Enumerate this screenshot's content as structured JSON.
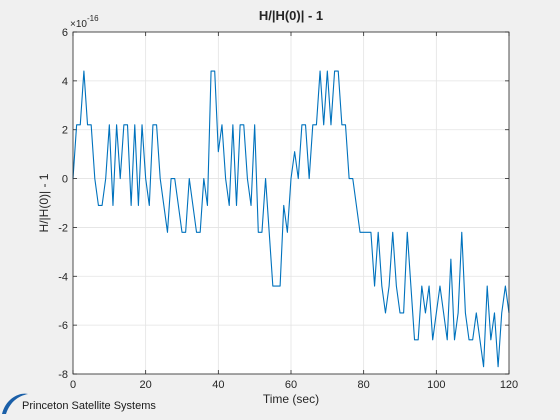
{
  "chart_data": {
    "type": "line",
    "title": "H/|H(0)| - 1",
    "xlabel": "Time (sec)",
    "ylabel": "H/|H(0)| - 1",
    "xlim": [
      0,
      120
    ],
    "ylim": [
      -8,
      6
    ],
    "y_exponent_label": "×10",
    "y_exponent_power": "-16",
    "x_ticks": [
      0,
      20,
      40,
      60,
      80,
      100,
      120
    ],
    "x_tick_labels": [
      "0",
      "20",
      "40",
      "60",
      "80",
      "100",
      "120"
    ],
    "y_ticks": [
      -8,
      -6,
      -4,
      -2,
      0,
      2,
      4,
      6
    ],
    "y_tick_labels": [
      "-8",
      "-6",
      "-4",
      "-2",
      "0",
      "2",
      "4",
      "6"
    ],
    "grid": true,
    "series": [
      {
        "color": "#0072bd",
        "x": [
          0,
          1,
          2,
          3,
          4,
          5,
          6,
          7,
          8,
          9,
          10,
          11,
          12,
          13,
          14,
          15,
          16,
          17,
          18,
          19,
          20,
          21,
          22,
          23,
          24,
          25,
          26,
          27,
          28,
          29,
          30,
          31,
          32,
          33,
          34,
          35,
          36,
          37,
          38,
          39,
          40,
          41,
          42,
          43,
          44,
          45,
          46,
          47,
          48,
          49,
          50,
          51,
          52,
          53,
          54,
          55,
          56,
          57,
          58,
          59,
          60,
          61,
          62,
          63,
          64,
          65,
          66,
          67,
          68,
          69,
          70,
          71,
          72,
          73,
          74,
          75,
          76,
          77,
          78,
          79,
          80,
          81,
          82,
          83,
          84,
          85,
          86,
          87,
          88,
          89,
          90,
          91,
          92,
          93,
          94,
          95,
          96,
          97,
          98,
          99,
          100,
          101,
          102,
          103,
          104,
          105,
          106,
          107,
          108,
          109,
          110,
          111,
          112,
          113,
          114,
          115,
          116,
          117,
          118,
          119,
          120
        ],
        "y": [
          0,
          2.2,
          2.2,
          4.4,
          2.2,
          2.2,
          0,
          -1.1,
          -1.1,
          0,
          2.2,
          -1.1,
          2.2,
          0,
          2.2,
          2.2,
          -1.1,
          2.2,
          -1.1,
          2.2,
          0,
          -1.1,
          2.2,
          2.2,
          0,
          -1.1,
          -2.2,
          0,
          0,
          -1.1,
          -2.2,
          -2.2,
          0,
          -1.1,
          -2.2,
          -2.2,
          0,
          -1.1,
          4.4,
          4.4,
          1.1,
          2.2,
          0,
          -1.1,
          2.2,
          -1.1,
          2.2,
          2.2,
          0,
          -1.1,
          2.2,
          -2.2,
          -2.2,
          0,
          -2.2,
          -4.4,
          -4.4,
          -4.4,
          -1.1,
          -2.2,
          0,
          1.1,
          0,
          2.2,
          2.2,
          0,
          2.2,
          2.2,
          4.4,
          2.2,
          4.4,
          2.2,
          4.4,
          4.4,
          2.2,
          2.2,
          0,
          0,
          -1.1,
          -2.2,
          -2.2,
          -2.2,
          -2.2,
          -4.4,
          -2.2,
          -4.4,
          -5.5,
          -4.4,
          -2.2,
          -4.4,
          -5.5,
          -5.5,
          -2.2,
          -4.4,
          -6.6,
          -6.6,
          -4.4,
          -5.5,
          -4.4,
          -6.6,
          -5.5,
          -4.4,
          -5.5,
          -6.6,
          -3.3,
          -6.6,
          -5.5,
          -2.2,
          -5.5,
          -6.6,
          -6.6,
          -5.5,
          -6.6,
          -7.7,
          -4.4,
          -6.6,
          -5.5,
          -7.7,
          -5.5,
          -4.4,
          -5.5
        ]
      }
    ]
  },
  "logo": {
    "text": "Princeton Satellite Systems",
    "color": "#1a5fa8"
  }
}
